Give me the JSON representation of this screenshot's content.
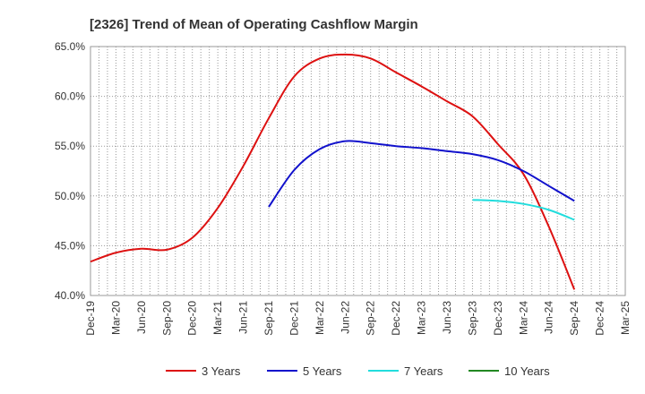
{
  "chart_data": {
    "type": "line",
    "title": "[2326]  Trend of Mean of Operating Cashflow Margin",
    "xlabel": "",
    "ylabel": "",
    "x": [
      "Dec-19",
      "Mar-20",
      "Jun-20",
      "Sep-20",
      "Dec-20",
      "Mar-21",
      "Jun-21",
      "Sep-21",
      "Dec-21",
      "Mar-22",
      "Jun-22",
      "Sep-22",
      "Dec-22",
      "Mar-23",
      "Jun-23",
      "Sep-23",
      "Dec-23",
      "Mar-24",
      "Jun-24",
      "Sep-24",
      "Dec-24",
      "Mar-25"
    ],
    "ylim": [
      40,
      65
    ],
    "yticks": [
      "40.0%",
      "45.0%",
      "50.0%",
      "55.0%",
      "60.0%",
      "65.0%"
    ],
    "grid": true,
    "legend_position": "bottom",
    "series": [
      {
        "name": "3 Years",
        "color": "#dd1111",
        "values": [
          43.4,
          44.3,
          44.7,
          44.6,
          45.8,
          48.8,
          53.0,
          57.8,
          62.0,
          63.8,
          64.2,
          63.8,
          62.4,
          61.0,
          59.5,
          58.0,
          55.2,
          52.2,
          46.9,
          40.6,
          null,
          null
        ]
      },
      {
        "name": "5 Years",
        "color": "#1111cc",
        "values": [
          null,
          null,
          null,
          null,
          null,
          null,
          null,
          48.9,
          52.6,
          54.7,
          55.5,
          55.3,
          55.0,
          54.8,
          54.5,
          54.2,
          53.6,
          52.5,
          51.0,
          49.5,
          null,
          null
        ]
      },
      {
        "name": "7 Years",
        "color": "#22dddd",
        "values": [
          null,
          null,
          null,
          null,
          null,
          null,
          null,
          null,
          null,
          null,
          null,
          null,
          null,
          null,
          null,
          49.6,
          49.5,
          49.2,
          48.6,
          47.6,
          null,
          null
        ]
      },
      {
        "name": "10 Years",
        "color": "#228822",
        "values": [
          null,
          null,
          null,
          null,
          null,
          null,
          null,
          null,
          null,
          null,
          null,
          null,
          null,
          null,
          null,
          null,
          null,
          null,
          null,
          null,
          null,
          null
        ]
      }
    ]
  }
}
